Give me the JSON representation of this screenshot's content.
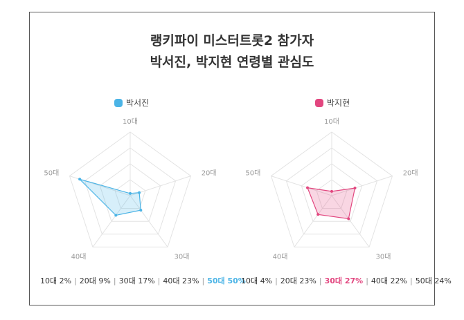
{
  "title_line1": "랭키파이 미스터트롯2 참가자",
  "title_line2": "박서진, 박지현 연령별 관심도",
  "colors": {
    "seojin": "#4bb4e6",
    "jihyun": "#e2467f",
    "grid": "#e3e3e3",
    "axis_label": "#999999"
  },
  "chart_data": [
    {
      "type": "radar",
      "legend": "박서진",
      "color": "#4bb4e6",
      "categories": [
        "10대",
        "20대",
        "30대",
        "40대",
        "50대"
      ],
      "values": [
        2,
        9,
        17,
        23,
        50
      ],
      "rmax": 60,
      "rings": 4,
      "summary": [
        {
          "text": "10대 2%",
          "highlight": false
        },
        {
          "text": "20대 9%",
          "highlight": false
        },
        {
          "text": "30대 17%",
          "highlight": false
        },
        {
          "text": "40대 23%",
          "highlight": false
        },
        {
          "text": "50대 50%",
          "highlight": true
        }
      ]
    },
    {
      "type": "radar",
      "legend": "박지현",
      "color": "#e2467f",
      "categories": [
        "10대",
        "20대",
        "30대",
        "40대",
        "50대"
      ],
      "values": [
        4,
        23,
        27,
        22,
        24
      ],
      "rmax": 60,
      "rings": 4,
      "summary": [
        {
          "text": "10대 4%",
          "highlight": false
        },
        {
          "text": "20대 23%",
          "highlight": false
        },
        {
          "text": "30대 27%",
          "highlight": true
        },
        {
          "text": "40대 22%",
          "highlight": false
        },
        {
          "text": "50대 24%",
          "highlight": false
        }
      ]
    }
  ]
}
